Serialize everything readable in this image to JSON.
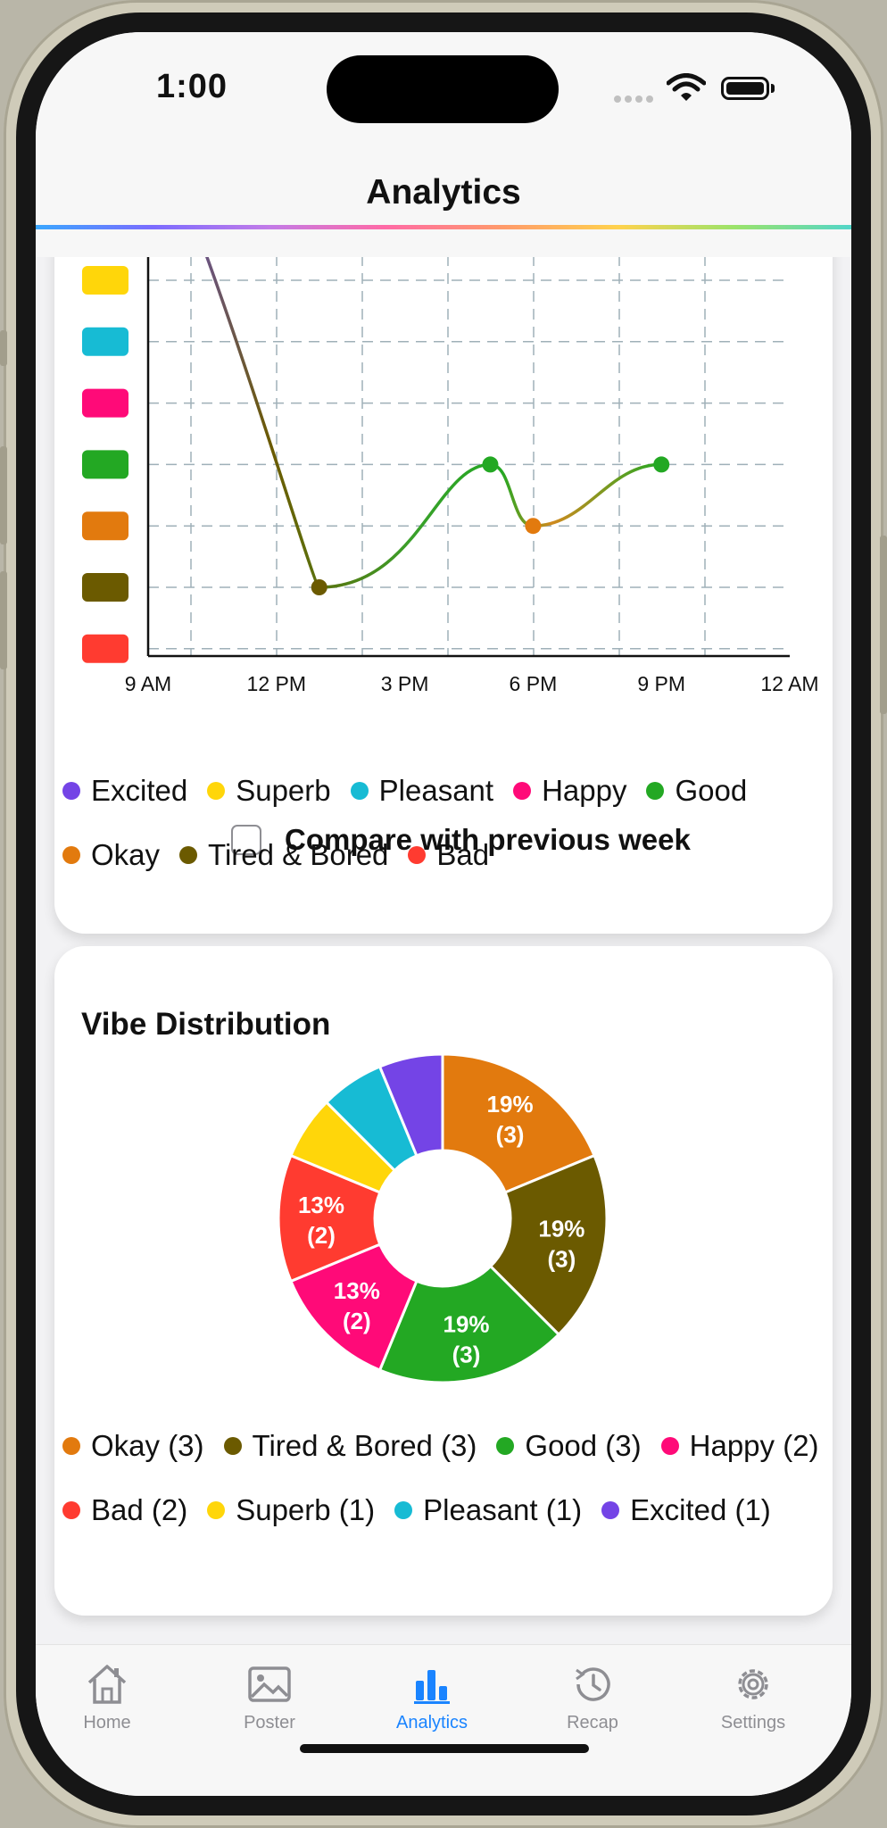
{
  "status_bar": {
    "time": "1:00"
  },
  "navigation": {
    "title": "Analytics"
  },
  "mood_chart": {
    "compare_label": "Compare with previous week",
    "compare_checked": false,
    "chart_data": {
      "type": "line",
      "x_ticks": [
        "9 AM",
        "12 PM",
        "3 PM",
        "6 PM",
        "9 PM",
        "12 AM"
      ],
      "x_unit": "hours after 9 AM",
      "y_levels_top_to_bottom": [
        "Superb",
        "Pleasant",
        "Happy",
        "Good",
        "Okay",
        "Tired & Bored",
        "Bad"
      ],
      "y_level_colors": [
        "#ffd60a",
        "#17bbd4",
        "#ff0a78",
        "#23a823",
        "#e27a0e",
        "#6b5a00",
        "#ff3b30"
      ],
      "points": [
        {
          "x": 4.0,
          "mood": "Tired & Bored",
          "color": "#6b5a00"
        },
        {
          "x": 8.0,
          "mood": "Good",
          "color": "#23a823"
        },
        {
          "x": 9.0,
          "mood": "Okay",
          "color": "#e27a0e"
        },
        {
          "x": 12.0,
          "mood": "Good",
          "color": "#23a823"
        }
      ],
      "grid": true
    },
    "legend": [
      {
        "label": "Excited",
        "color": "#7444e6"
      },
      {
        "label": "Superb",
        "color": "#ffd60a"
      },
      {
        "label": "Pleasant",
        "color": "#17bbd4"
      },
      {
        "label": "Happy",
        "color": "#ff0a78"
      },
      {
        "label": "Good",
        "color": "#23a823"
      },
      {
        "label": "Okay",
        "color": "#e27a0e"
      },
      {
        "label": "Tired & Bored",
        "color": "#6b5a00"
      },
      {
        "label": "Bad",
        "color": "#ff3b30"
      }
    ]
  },
  "vibe_distribution": {
    "title": "Vibe Distribution",
    "chart_data": {
      "type": "pie",
      "donut": true,
      "slices": [
        {
          "name": "Okay",
          "value": 3,
          "color": "#e27a0e",
          "label": "19%\n(3)"
        },
        {
          "name": "Tired & Bored",
          "value": 3,
          "color": "#6b5a00",
          "label": "19%\n(3)"
        },
        {
          "name": "Good",
          "value": 3,
          "color": "#23a823",
          "label": "19%\n(3)"
        },
        {
          "name": "Happy",
          "value": 2,
          "color": "#ff0a78",
          "label": "13%\n(2)"
        },
        {
          "name": "Bad",
          "value": 2,
          "color": "#ff3b30",
          "label": "13%\n(2)"
        },
        {
          "name": "Superb",
          "value": 1,
          "color": "#ffd60a",
          "label": ""
        },
        {
          "name": "Pleasant",
          "value": 1,
          "color": "#17bbd4",
          "label": ""
        },
        {
          "name": "Excited",
          "value": 1,
          "color": "#7444e6",
          "label": ""
        }
      ]
    },
    "legend": [
      {
        "label": "Okay (3)",
        "color": "#e27a0e"
      },
      {
        "label": "Tired & Bored (3)",
        "color": "#6b5a00"
      },
      {
        "label": "Good (3)",
        "color": "#23a823"
      },
      {
        "label": "Happy (2)",
        "color": "#ff0a78"
      },
      {
        "label": "Bad (2)",
        "color": "#ff3b30"
      },
      {
        "label": "Superb (1)",
        "color": "#ffd60a"
      },
      {
        "label": "Pleasant (1)",
        "color": "#17bbd4"
      },
      {
        "label": "Excited (1)",
        "color": "#7444e6"
      }
    ]
  },
  "tab_bar": {
    "tabs": [
      {
        "label": "Home",
        "icon": "house-icon",
        "active": false
      },
      {
        "label": "Poster",
        "icon": "photo-icon",
        "active": false
      },
      {
        "label": "Analytics",
        "icon": "bar-chart-icon",
        "active": true
      },
      {
        "label": "Recap",
        "icon": "history-icon",
        "active": false
      },
      {
        "label": "Settings",
        "icon": "gear-icon",
        "active": false
      }
    ]
  }
}
